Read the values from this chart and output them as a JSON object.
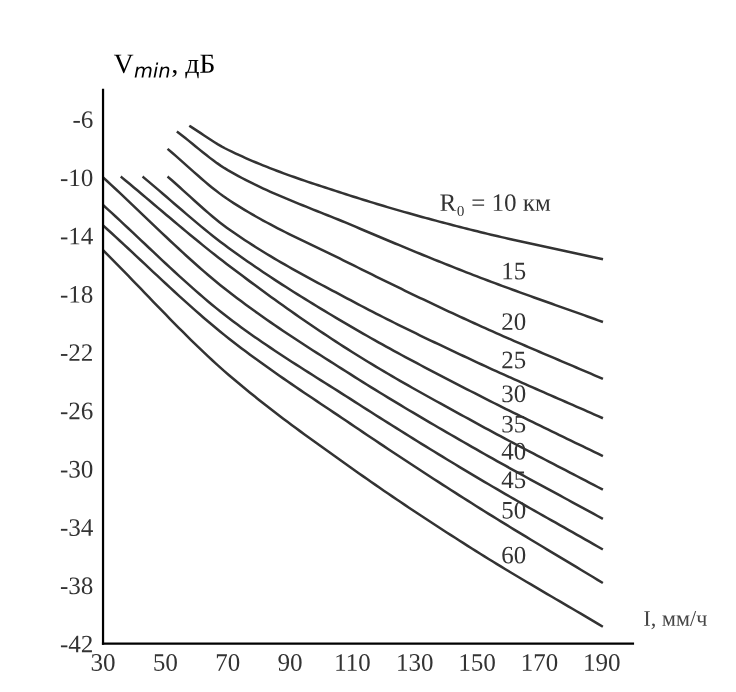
{
  "chart_data": {
    "type": "line",
    "xlabel": "I, мм/ч",
    "ylabel": "V$_{min}$, дБ",
    "xlim": [
      30,
      200
    ],
    "ylim": [
      -42,
      -4
    ],
    "xticks": [
      30,
      50,
      70,
      90,
      110,
      130,
      150,
      170,
      190
    ],
    "yticks": [
      -6,
      -10,
      -14,
      -18,
      -22,
      -26,
      -30,
      -34,
      -38,
      -42
    ],
    "grid": false,
    "legend": false,
    "marker": "none",
    "line_style": "solid",
    "series": [
      {
        "name": "R₀ = 10 км",
        "color": "#333333",
        "x": [
          58,
          70,
          110,
          150,
          190
        ],
        "values": [
          -6.5,
          -8.1,
          -11.3,
          -13.7,
          -15.6
        ]
      },
      {
        "name": "15",
        "color": "#333333",
        "x": [
          54,
          70,
          110,
          150,
          190
        ],
        "values": [
          -6.9,
          -9.5,
          -13.3,
          -16.8,
          -19.9
        ]
      },
      {
        "name": "20",
        "color": "#333333",
        "x": [
          51,
          70,
          110,
          150,
          190
        ],
        "values": [
          -8.1,
          -11.5,
          -16,
          -20.1,
          -23.8
        ]
      },
      {
        "name": "25",
        "color": "#333333",
        "x": [
          51,
          70,
          110,
          150,
          190
        ],
        "values": [
          -10,
          -13.5,
          -18.5,
          -22.7,
          -26.5
        ]
      },
      {
        "name": "30",
        "color": "#333333",
        "x": [
          43,
          70,
          110,
          150,
          190
        ],
        "values": [
          -10,
          -14.8,
          -20.3,
          -24.9,
          -29.1
        ]
      },
      {
        "name": "35",
        "color": "#333333",
        "x": [
          36,
          70,
          110,
          150,
          190
        ],
        "values": [
          -10,
          -16,
          -22,
          -26.9,
          -31.4
        ]
      },
      {
        "name": "40",
        "color": "#333333",
        "x": [
          30,
          70,
          110,
          150,
          190
        ],
        "values": [
          -10,
          -17.8,
          -23.6,
          -28.7,
          -33.4
        ]
      },
      {
        "name": "45",
        "color": "#333333",
        "x": [
          30,
          70,
          110,
          150,
          190
        ],
        "values": [
          -11.9,
          -19.6,
          -25.3,
          -30.6,
          -35.5
        ]
      },
      {
        "name": "50",
        "color": "#333333",
        "x": [
          30,
          70,
          110,
          150,
          190
        ],
        "values": [
          -13.3,
          -21,
          -27,
          -32.6,
          -37.8
        ]
      },
      {
        "name": "60",
        "color": "#333333",
        "x": [
          30,
          70,
          110,
          150,
          190
        ],
        "values": [
          -15,
          -23.5,
          -30,
          -35.7,
          -40.8
        ]
      }
    ]
  }
}
